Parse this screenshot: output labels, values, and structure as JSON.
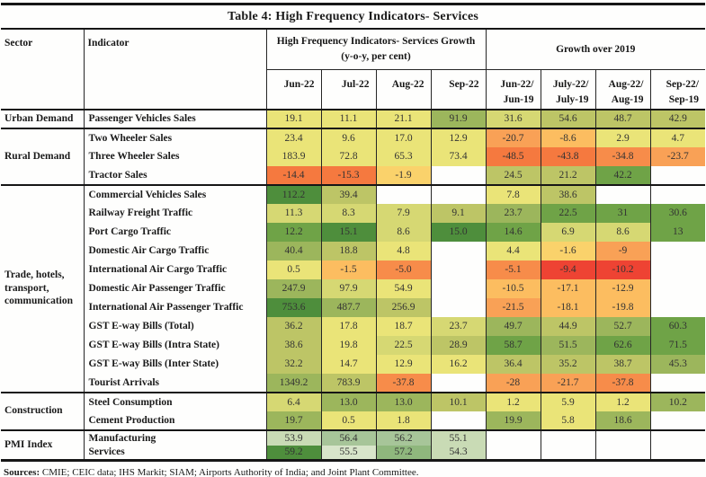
{
  "title": "Table 4: High Frequency Indicators- Services",
  "header": {
    "sector": "Sector",
    "indicator": "Indicator",
    "group1_line1": "High Frequency Indicators- Services Growth",
    "group1_line2": "(y-o-y, per cent)",
    "group2": "Growth over 2019",
    "columns": [
      [
        "Jun-22"
      ],
      [
        "Jul-22"
      ],
      [
        "Aug-22"
      ],
      [
        "Sep-22"
      ],
      [
        "Jun-22/",
        "Jun-19"
      ],
      [
        "July-22/",
        "July-19"
      ],
      [
        "Aug-22/",
        "Aug-19"
      ],
      [
        "Sep-22/",
        "Sep-19"
      ]
    ]
  },
  "chart_data": {
    "type": "heatmap",
    "title": "Table 4: High Frequency Indicators- Services",
    "column_groups": [
      "High Frequency Indicators- Services Growth (y-o-y, per cent)",
      "Growth over 2019"
    ],
    "columns": [
      "Jun-22",
      "Jul-22",
      "Aug-22",
      "Sep-22",
      "Jun-22/Jun-19",
      "July-22/July-19",
      "Aug-22/Aug-19",
      "Sep-22/Sep-19"
    ],
    "palette": {
      "dg": "#4e8e3c",
      "g": "#6fa347",
      "og": "#9cb65c",
      "ol": "#bdc566",
      "oly": "#d6d873",
      "y": "#eae478",
      "am": "#fad26b",
      "lo": "#fcbd60",
      "mo": "#f9a156",
      "o": "#f78c4a",
      "do": "#f5793f",
      "r": "#ee4333",
      "p1": "#d8e5ca",
      "p2": "#c9dbb5",
      "p3": "#a7c599",
      "p4": "#8fb77d"
    },
    "sections": [
      {
        "sector": "Urban Demand",
        "rows": [
          {
            "indicator": "Passenger Vehicles Sales",
            "values": [
              "19.1",
              "11.1",
              "21.1",
              "91.9",
              "31.6",
              "54.6",
              "48.7",
              "42.9"
            ],
            "colors": [
              "y",
              "y",
              "y",
              "og",
              "oly",
              "ol",
              "ol",
              "ol"
            ]
          }
        ]
      },
      {
        "sector": "Rural Demand",
        "rows": [
          {
            "indicator": "Two Wheeler Sales",
            "values": [
              "23.4",
              "9.6",
              "17.0",
              "12.9",
              "-20.7",
              "-8.6",
              "2.9",
              "4.7"
            ],
            "colors": [
              "y",
              "y",
              "y",
              "y",
              "mo",
              "lo",
              "y",
              "y"
            ]
          },
          {
            "indicator": "Three Wheeler Sales",
            "values": [
              "183.9",
              "72.8",
              "65.3",
              "73.4",
              "-48.5",
              "-43.8",
              "-34.8",
              "-23.7"
            ],
            "colors": [
              "y",
              "y",
              "y",
              "y",
              "do",
              "do",
              "o",
              "mo"
            ]
          },
          {
            "indicator": "Tractor Sales",
            "values": [
              "-14.4",
              "-15.3",
              "-1.9",
              null,
              "24.5",
              "21.2",
              "42.2",
              null
            ],
            "colors": [
              "do",
              "do",
              "am",
              null,
              "ol",
              "ol",
              "g",
              null
            ]
          }
        ]
      },
      {
        "sector": "Trade, hotels, transport, communication",
        "rows": [
          {
            "indicator": "Commercial Vehicles Sales",
            "values": [
              "112.2",
              "39.4",
              null,
              null,
              "7.8",
              "38.6",
              null,
              null
            ],
            "colors": [
              "dg",
              "ol",
              null,
              null,
              "y",
              "ol",
              null,
              null
            ]
          },
          {
            "indicator": "Railway Freight Traffic",
            "values": [
              "11.3",
              "8.3",
              "7.9",
              "9.1",
              "23.7",
              "22.5",
              "31",
              "30.6"
            ],
            "colors": [
              "oly",
              "oly",
              "oly",
              "ol",
              "og",
              "g",
              "g",
              "g"
            ]
          },
          {
            "indicator": "Port Cargo Traffic",
            "values": [
              "12.2",
              "15.1",
              "8.6",
              "15.0",
              "14.6",
              "6.9",
              "8.6",
              "13"
            ],
            "colors": [
              "g",
              "dg",
              "oly",
              "dg",
              "g",
              "oly",
              "oly",
              "g"
            ]
          },
          {
            "indicator": "Domestic Air Cargo Traffic",
            "values": [
              "40.4",
              "18.8",
              "4.8",
              null,
              "4.4",
              "-1.6",
              "-9",
              null
            ],
            "colors": [
              "og",
              "ol",
              "y",
              null,
              "y",
              "am",
              "mo",
              null
            ]
          },
          {
            "indicator": "International Air Cargo Traffic",
            "values": [
              "0.5",
              "-1.5",
              "-5.0",
              null,
              "-5.1",
              "-9.4",
              "-10.2",
              null
            ],
            "colors": [
              "y",
              "lo",
              "o",
              null,
              "o",
              "r",
              "r",
              null
            ]
          },
          {
            "indicator": "Domestic Air Passenger Traffic",
            "values": [
              "247.9",
              "97.9",
              "54.9",
              null,
              "-10.5",
              "-17.1",
              "-12.9",
              null
            ],
            "colors": [
              "og",
              "oly",
              "y",
              null,
              "lo",
              "lo",
              "lo",
              null
            ]
          },
          {
            "indicator": "International Air Passenger Traffic",
            "values": [
              "753.6",
              "487.7",
              "256.9",
              null,
              "-21.5",
              "-18.1",
              "-19.8",
              null
            ],
            "colors": [
              "dg",
              "og",
              "ol",
              null,
              "mo",
              "lo",
              "lo",
              null
            ]
          },
          {
            "indicator": "GST E-way Bills (Total)",
            "values": [
              "36.2",
              "17.8",
              "18.7",
              "23.7",
              "49.7",
              "44.9",
              "52.7",
              "60.3"
            ],
            "colors": [
              "ol",
              "y",
              "y",
              "oly",
              "og",
              "ol",
              "og",
              "g"
            ]
          },
          {
            "indicator": "GST E-way Bills (Intra State)",
            "values": [
              "38.6",
              "19.8",
              "22.5",
              "28.9",
              "58.7",
              "51.5",
              "62.6",
              "71.5"
            ],
            "colors": [
              "ol",
              "y",
              "oly",
              "ol",
              "g",
              "og",
              "g",
              "g"
            ]
          },
          {
            "indicator": "GST E-way Bills (Inter State)",
            "values": [
              "32.2",
              "14.7",
              "12.9",
              "16.2",
              "36.4",
              "35.2",
              "38.7",
              "45.3"
            ],
            "colors": [
              "ol",
              "y",
              "y",
              "y",
              "ol",
              "ol",
              "ol",
              "og"
            ]
          },
          {
            "indicator": "Tourist Arrivals",
            "values": [
              "1349.2",
              "783.9",
              "-37.8",
              null,
              "-28",
              "-21.7",
              "-37.8",
              null
            ],
            "colors": [
              "og",
              "ol",
              "o",
              null,
              "mo",
              "mo",
              "o",
              null
            ]
          }
        ]
      },
      {
        "sector": "Construction",
        "rows": [
          {
            "indicator": "Steel Consumption",
            "values": [
              "6.4",
              "13.0",
              "13.0",
              "10.1",
              "1.2",
              "5.9",
              "1.2",
              "10.2"
            ],
            "colors": [
              "oly",
              "og",
              "og",
              "ol",
              "y",
              "y",
              "y",
              "og"
            ]
          },
          {
            "indicator": "Cement Production",
            "values": [
              "19.7",
              "0.5",
              "1.8",
              null,
              "19.9",
              "5.8",
              "18.6",
              null
            ],
            "colors": [
              "og",
              "y",
              "y",
              null,
              "og",
              "y",
              "og",
              null
            ]
          }
        ]
      },
      {
        "sector": "PMI Index",
        "compact": true,
        "rows": [
          {
            "indicator": "Manufacturing",
            "values": [
              "53.9",
              "56.4",
              "56.2",
              "55.1",
              null,
              null,
              null,
              null
            ],
            "colors": [
              "p2",
              "p3",
              "p3",
              "p2",
              null,
              null,
              null,
              null
            ]
          },
          {
            "indicator": "Services",
            "values": [
              "59.2",
              "55.5",
              "57.2",
              "54.3",
              null,
              null,
              null,
              null
            ],
            "colors": [
              "dg",
              "p1",
              "p4",
              "p2",
              null,
              null,
              null,
              null
            ]
          }
        ]
      }
    ]
  },
  "sources": {
    "label": "Sources:",
    "text": " CMIE; CEIC data; IHS Markit; SIAM; Airports Authority of India; and Joint Plant Committee."
  }
}
